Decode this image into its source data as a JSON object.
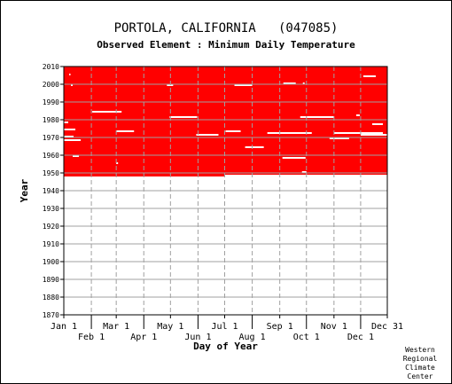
{
  "header": {
    "title": "PORTOLA, CALIFORNIA   (047085)",
    "subtitle": "Observed Element : Minimum Daily Temperature"
  },
  "credit": [
    "Western",
    "Regional",
    "Climate",
    "Center"
  ],
  "chart_data": {
    "type": "heatmap",
    "xlabel": "Day of Year",
    "ylabel": "Year",
    "xlim": [
      1,
      365
    ],
    "ylim": [
      1870,
      2010
    ],
    "x_ticks_top": [
      {
        "label": "Jan 1",
        "day": 1
      },
      {
        "label": "Mar 1",
        "day": 60
      },
      {
        "label": "May 1",
        "day": 121
      },
      {
        "label": "Jul 1",
        "day": 182
      },
      {
        "label": "Sep 1",
        "day": 244
      },
      {
        "label": "Nov 1",
        "day": 305
      },
      {
        "label": "Dec 31",
        "day": 365
      }
    ],
    "x_ticks_bottom": [
      {
        "label": "Feb 1",
        "day": 32
      },
      {
        "label": "Apr 1",
        "day": 91
      },
      {
        "label": "Jun 1",
        "day": 152
      },
      {
        "label": "Aug 1",
        "day": 213
      },
      {
        "label": "Oct 1",
        "day": 274
      },
      {
        "label": "Dec 1",
        "day": 335
      }
    ],
    "y_ticks": [
      1870,
      1880,
      1890,
      1900,
      1910,
      1920,
      1930,
      1940,
      1950,
      1960,
      1970,
      1980,
      1990,
      2000,
      2010
    ],
    "data_color": "#ff0000",
    "grid": true,
    "data_period": {
      "first_year": 1948,
      "last_year": 2010
    },
    "missing_segments": [
      {
        "year": 2005,
        "start_day": 7,
        "end_day": 8
      },
      {
        "year": 2004,
        "start_day": 338,
        "end_day": 352
      },
      {
        "year": 2000,
        "start_day": 248,
        "end_day": 262
      },
      {
        "year": 2000,
        "start_day": 270,
        "end_day": 272
      },
      {
        "year": 1999,
        "start_day": 193,
        "end_day": 213
      },
      {
        "year": 1999,
        "start_day": 117,
        "end_day": 124
      },
      {
        "year": 1999,
        "start_day": 9,
        "end_day": 11
      },
      {
        "year": 1984,
        "start_day": 33,
        "end_day": 66
      },
      {
        "year": 1981,
        "start_day": 120,
        "end_day": 151
      },
      {
        "year": 1981,
        "start_day": 267,
        "end_day": 305
      },
      {
        "year": 1982,
        "start_day": 330,
        "end_day": 334
      },
      {
        "year": 1978,
        "start_day": 1,
        "end_day": 6
      },
      {
        "year": 1977,
        "start_day": 348,
        "end_day": 360
      },
      {
        "year": 1974,
        "start_day": 1,
        "end_day": 14
      },
      {
        "year": 1973,
        "start_day": 60,
        "end_day": 80
      },
      {
        "year": 1973,
        "start_day": 183,
        "end_day": 200
      },
      {
        "year": 1972,
        "start_day": 230,
        "end_day": 280
      },
      {
        "year": 1972,
        "start_day": 305,
        "end_day": 360
      },
      {
        "year": 1971,
        "start_day": 150,
        "end_day": 175
      },
      {
        "year": 1971,
        "start_day": 335,
        "end_day": 365
      },
      {
        "year": 1970,
        "start_day": 1,
        "end_day": 12
      },
      {
        "year": 1969,
        "start_day": 300,
        "end_day": 322
      },
      {
        "year": 1968,
        "start_day": 1,
        "end_day": 20
      },
      {
        "year": 1964,
        "start_day": 205,
        "end_day": 226
      },
      {
        "year": 1959,
        "start_day": 11,
        "end_day": 18
      },
      {
        "year": 1958,
        "start_day": 247,
        "end_day": 273
      },
      {
        "year": 1955,
        "start_day": 60,
        "end_day": 62
      },
      {
        "year": 1950,
        "start_day": 269,
        "end_day": 274
      },
      {
        "year": 1948,
        "start_day": 182,
        "end_day": 365
      }
    ]
  }
}
